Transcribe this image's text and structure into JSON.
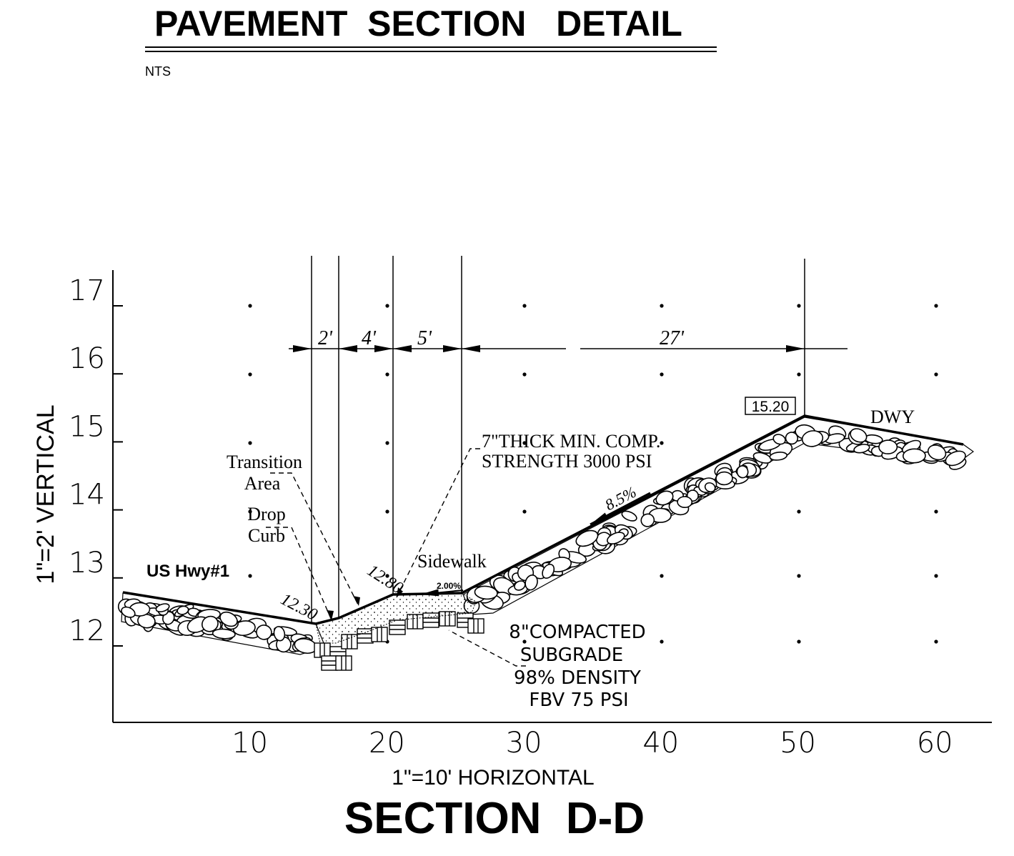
{
  "header": {
    "title": "PAVEMENT  SECTION   DETAIL",
    "scale_note": "NTS"
  },
  "axes": {
    "vertical_label": "1\"=2' VERTICAL",
    "horizontal_label": "1\"=10' HORIZONTAL",
    "y_ticks": [
      "17",
      "16",
      "15",
      "14",
      "13",
      "12"
    ],
    "x_ticks": [
      "10",
      "20",
      "30",
      "40",
      "50",
      "60"
    ]
  },
  "section_title": "SECTION  D-D",
  "dimensions": {
    "d1": "2'",
    "d2": "4'",
    "d3": "5'",
    "d4": "27'"
  },
  "elevations": {
    "driveway_top": "15.20",
    "gutter": "12.30",
    "back_of_curb": "12.80"
  },
  "slopes": {
    "sidewalk": "2.00%",
    "driveway": "8.5%"
  },
  "labels": {
    "transition_line1": "Transition",
    "transition_line2": "Area",
    "drop_curb_line1": "Drop",
    "drop_curb_line2": "Curb",
    "road": "US Hwy#1",
    "sidewalk": "Sidewalk",
    "driveway": "DWY",
    "concrete_line1": "7\"THICK MIN. COMP.",
    "concrete_line2": "STRENGTH 3000 PSI",
    "subgrade_line1": "8\"COMPACTED",
    "subgrade_line2": "SUBGRADE",
    "subgrade_line3": "98% DENSITY",
    "subgrade_line4": "FBV 75 PSI"
  }
}
